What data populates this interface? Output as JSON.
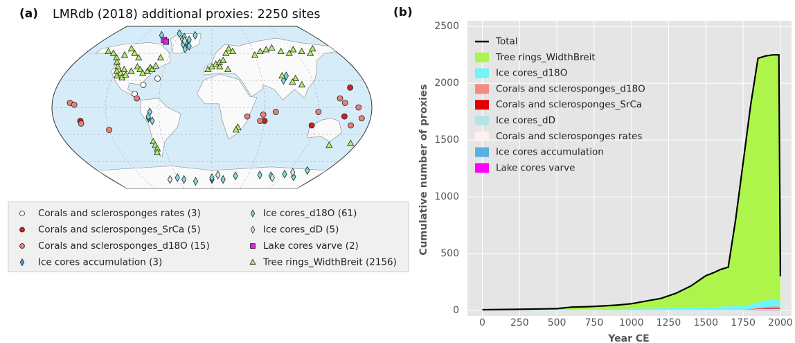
{
  "chart_data": [
    {
      "type": "map",
      "panel_label": "(a)",
      "title": "LMRdb (2018) additional proxies: 2250 sites",
      "legend": "below",
      "series": [
        {
          "name": "Corals and sclerosponges rates (3)",
          "color": "#ffffff",
          "marker": "circle",
          "lon": [
            -65,
            -80,
            -88
          ],
          "lat": [
            32,
            25,
            15
          ]
        },
        {
          "name": "Corals and sclerosponges_SrCa (5)",
          "color": "#cc2020",
          "marker": "circle",
          "lon": [
            160,
            -150,
            115,
            150,
            60
          ],
          "lat": [
            22,
            -15,
            -20,
            -10,
            -15
          ]
        },
        {
          "name": "Corals and sclerosponges_d18O (15)",
          "color": "#e88078",
          "marker": "circle",
          "lon": [
            -160,
            -155,
            -85,
            40,
            55,
            58,
            72,
            145,
            150,
            165,
            170,
            160,
            -150,
            -120,
            120
          ],
          "lat": [
            5,
            3,
            10,
            -10,
            -15,
            -8,
            -5,
            10,
            5,
            0,
            -12,
            -20,
            -18,
            -25,
            -5
          ]
        },
        {
          "name": "Ice cores accumulation (3)",
          "color": "#5a9ad8",
          "marker": "diamond",
          "lon": [
            -40,
            -72,
            0
          ],
          "lat": [
            70,
            -12,
            -80
          ]
        },
        {
          "name": "Ice cores_d18O (61)",
          "color": "#7ed8e0",
          "marker": "diamond",
          "lon": [
            -42,
            -38,
            -45,
            -50,
            -35,
            -48,
            -30,
            -60,
            -40,
            -90,
            -70,
            -68,
            -72,
            -60,
            -50,
            -30,
            0,
            20,
            40,
            80,
            100,
            120,
            140,
            85,
            90,
            150
          ],
          "lat": [
            72,
            75,
            70,
            76,
            68,
            78,
            80,
            82,
            65,
            80,
            -5,
            -15,
            -10,
            -78,
            -80,
            -82,
            -78,
            -80,
            -76,
            -75,
            -76,
            -74,
            -77,
            30,
            35,
            -70
          ]
        },
        {
          "name": "Ice cores_dD (5)",
          "color": "#c8f0f0",
          "marker": "diamond",
          "lon": [
            -45,
            -75,
            10,
            105,
            130
          ],
          "lat": [
            74,
            -80,
            -75,
            -78,
            -72
          ]
        },
        {
          "name": "Lake cores varve (2)",
          "color": "#dd22dd",
          "marker": "square",
          "lon": [
            -80,
            -75
          ],
          "lat": [
            75,
            73
          ]
        },
        {
          "name": "Tree rings_WidthBreit (2156)",
          "color": "#b4ee6a",
          "marker": "triangle",
          "lon": [
            -150,
            -140,
            -130,
            -125,
            -120,
            -118,
            -115,
            -112,
            -110,
            -108,
            -105,
            -100,
            -95,
            -90,
            -85,
            -80,
            -78,
            -75,
            -72,
            -70,
            -122,
            -110,
            -100,
            -120,
            -5,
            0,
            5,
            10,
            15,
            20,
            25,
            30,
            20,
            10,
            60,
            70,
            80,
            90,
            100,
            110,
            120,
            130,
            140,
            150,
            100,
            95,
            105,
            -72,
            -71,
            -70,
            -72,
            147,
            172,
            30,
            28,
            85
          ],
          "lat": [
            62,
            60,
            55,
            50,
            45,
            40,
            35,
            38,
            42,
            33,
            36,
            40,
            45,
            42,
            38,
            40,
            44,
            42,
            46,
            55,
            58,
            60,
            55,
            65,
            42,
            45,
            48,
            50,
            52,
            60,
            65,
            62,
            42,
            45,
            58,
            62,
            64,
            66,
            62,
            60,
            64,
            62,
            60,
            65,
            32,
            28,
            25,
            -38,
            -42,
            -46,
            -50,
            -42,
            -40,
            -22,
            -25,
            35
          ]
        }
      ]
    },
    {
      "type": "area",
      "panel_label": "(b)",
      "stacked": true,
      "legend": "upper left",
      "grid": true,
      "xlabel": "Year CE",
      "ylabel": "Cumulative number of proxies",
      "x": [
        0,
        200,
        400,
        500,
        600,
        700,
        800,
        900,
        1000,
        1100,
        1200,
        1300,
        1400,
        1500,
        1550,
        1600,
        1650,
        1700,
        1750,
        1800,
        1850,
        1900,
        1950,
        1990,
        2000
      ],
      "xlim": [
        -100,
        2075
      ],
      "xticks": [
        0,
        250,
        500,
        750,
        1000,
        1250,
        1500,
        1750,
        2000
      ],
      "ylim": [
        -50,
        2550
      ],
      "yticks": [
        0,
        500,
        1000,
        1500,
        2000,
        2500
      ],
      "series": [
        {
          "name": "Total",
          "color": "#000000",
          "style": "line",
          "values": [
            5,
            8,
            12,
            15,
            28,
            32,
            38,
            45,
            58,
            82,
            105,
            150,
            215,
            305,
            330,
            360,
            380,
            800,
            1300,
            1800,
            2220,
            2240,
            2250,
            2250,
            300
          ]
        },
        {
          "name": "Tree rings_WidthBreit",
          "color": "#adf54a",
          "values": [
            1,
            3,
            5,
            7,
            19,
            22,
            27,
            32,
            43,
            66,
            87,
            129,
            192,
            279,
            302,
            327,
            346,
            764,
            1260,
            1748,
            2150,
            2153,
            2156,
            2156,
            255
          ]
        },
        {
          "name": "Ice cores_d18O",
          "color": "#6ff4f8",
          "values": [
            3,
            4,
            6,
            7,
            8,
            9,
            10,
            12,
            14,
            15,
            17,
            20,
            22,
            25,
            27,
            29,
            30,
            32,
            35,
            40,
            48,
            58,
            61,
            61,
            25
          ]
        },
        {
          "name": "Corals and sclerosponges_d18O",
          "color": "#f58a80",
          "values": [
            0,
            0,
            0,
            0,
            0,
            0,
            0,
            0,
            0,
            0,
            0,
            0,
            0,
            0,
            0,
            0,
            0,
            0,
            1,
            3,
            8,
            12,
            15,
            15,
            10
          ]
        },
        {
          "name": "Corals and sclerosponges_SrCa",
          "color": "#e00000",
          "values": [
            0,
            0,
            0,
            0,
            0,
            0,
            0,
            0,
            0,
            0,
            0,
            0,
            0,
            0,
            0,
            0,
            0,
            0,
            0,
            1,
            3,
            5,
            5,
            5,
            3
          ]
        },
        {
          "name": "Ice cores_dD",
          "color": "#b2e6e6",
          "values": [
            1,
            1,
            1,
            1,
            1,
            1,
            1,
            1,
            1,
            1,
            1,
            1,
            1,
            1,
            1,
            3,
            3,
            3,
            3,
            5,
            5,
            5,
            5,
            5,
            2
          ]
        },
        {
          "name": "Corals and sclerosponges rates",
          "color": "#fff0f0",
          "values": [
            0,
            0,
            0,
            0,
            0,
            0,
            0,
            0,
            0,
            0,
            0,
            0,
            0,
            0,
            0,
            0,
            0,
            0,
            0,
            0,
            1,
            2,
            3,
            3,
            3
          ]
        },
        {
          "name": "Ice cores accumulation",
          "color": "#56b0e0",
          "values": [
            0,
            0,
            0,
            0,
            0,
            0,
            0,
            0,
            0,
            0,
            0,
            0,
            0,
            0,
            0,
            1,
            1,
            1,
            1,
            1,
            3,
            3,
            3,
            3,
            1
          ]
        },
        {
          "name": "Lake cores varve",
          "color": "#ff00ff",
          "values": [
            0,
            0,
            0,
            0,
            0,
            0,
            0,
            0,
            0,
            0,
            0,
            0,
            0,
            0,
            0,
            0,
            0,
            0,
            0,
            2,
            2,
            2,
            2,
            2,
            1
          ]
        }
      ]
    }
  ]
}
